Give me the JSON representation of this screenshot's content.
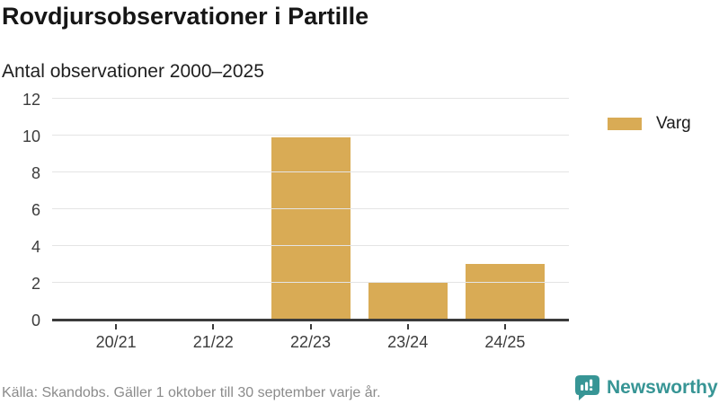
{
  "header": {
    "title": "Rovdjursobservationer i Partille",
    "subtitle": "Antal observationer 2000–2025"
  },
  "chart_data": {
    "type": "bar",
    "categories": [
      "20/21",
      "21/22",
      "22/23",
      "23/24",
      "24/25"
    ],
    "series": [
      {
        "name": "Varg",
        "color": "#d9ab55",
        "values": [
          0,
          0,
          10,
          2,
          3
        ]
      }
    ],
    "title": "Rovdjursobservationer i Partille",
    "subtitle": "Antal observationer 2000–2025",
    "xlabel": "",
    "ylabel": "",
    "ylim": [
      0,
      12
    ],
    "ytick_step": 2,
    "grid": true,
    "legend_position": "right"
  },
  "legend": {
    "label": "Varg"
  },
  "footer": {
    "source": "Källa: Skandobs. Gäller 1 oktober till 30 september varje år.",
    "brand": "Newsworthy"
  },
  "colors": {
    "bar": "#d9ab55",
    "brand_teal": "#379595",
    "axis": "#3b3b3b",
    "grid": "#e4e4e4",
    "tick_text": "#3c3c3c",
    "source_text": "#8b8b8b"
  }
}
